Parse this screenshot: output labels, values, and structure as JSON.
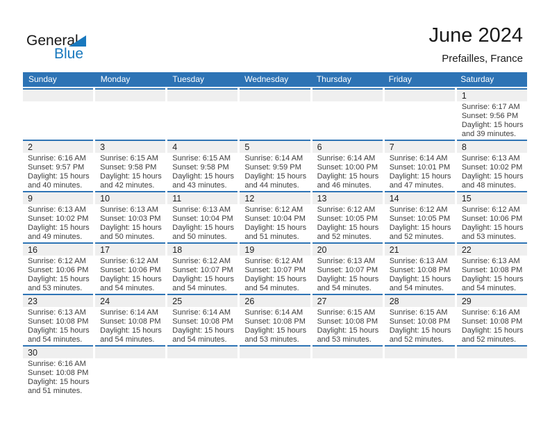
{
  "logo": {
    "general": "General",
    "blue": "Blue"
  },
  "header": {
    "title": "June 2024",
    "subtitle": "Prefailles, France"
  },
  "colors": {
    "header_bar_blue": "#2d73b5",
    "week_line_blue": "#2e74b5",
    "logo_blue": "#1878be",
    "day_band_gray": "#efefef",
    "detail_text": "#3d3d3d"
  },
  "day_headers": [
    "Sunday",
    "Monday",
    "Tuesday",
    "Wednesday",
    "Thursday",
    "Friday",
    "Saturday"
  ],
  "weeks": [
    [
      null,
      null,
      null,
      null,
      null,
      null,
      {
        "day": "1",
        "sunrise": "Sunrise: 6:17 AM",
        "sunset": "Sunset: 9:56 PM",
        "daylight_line1": "Daylight: 15 hours",
        "daylight_line2": "and 39 minutes."
      }
    ],
    [
      {
        "day": "2",
        "sunrise": "Sunrise: 6:16 AM",
        "sunset": "Sunset: 9:57 PM",
        "daylight_line1": "Daylight: 15 hours",
        "daylight_line2": "and 40 minutes."
      },
      {
        "day": "3",
        "sunrise": "Sunrise: 6:15 AM",
        "sunset": "Sunset: 9:58 PM",
        "daylight_line1": "Daylight: 15 hours",
        "daylight_line2": "and 42 minutes."
      },
      {
        "day": "4",
        "sunrise": "Sunrise: 6:15 AM",
        "sunset": "Sunset: 9:58 PM",
        "daylight_line1": "Daylight: 15 hours",
        "daylight_line2": "and 43 minutes."
      },
      {
        "day": "5",
        "sunrise": "Sunrise: 6:14 AM",
        "sunset": "Sunset: 9:59 PM",
        "daylight_line1": "Daylight: 15 hours",
        "daylight_line2": "and 44 minutes."
      },
      {
        "day": "6",
        "sunrise": "Sunrise: 6:14 AM",
        "sunset": "Sunset: 10:00 PM",
        "daylight_line1": "Daylight: 15 hours",
        "daylight_line2": "and 46 minutes."
      },
      {
        "day": "7",
        "sunrise": "Sunrise: 6:14 AM",
        "sunset": "Sunset: 10:01 PM",
        "daylight_line1": "Daylight: 15 hours",
        "daylight_line2": "and 47 minutes."
      },
      {
        "day": "8",
        "sunrise": "Sunrise: 6:13 AM",
        "sunset": "Sunset: 10:02 PM",
        "daylight_line1": "Daylight: 15 hours",
        "daylight_line2": "and 48 minutes."
      }
    ],
    [
      {
        "day": "9",
        "sunrise": "Sunrise: 6:13 AM",
        "sunset": "Sunset: 10:02 PM",
        "daylight_line1": "Daylight: 15 hours",
        "daylight_line2": "and 49 minutes."
      },
      {
        "day": "10",
        "sunrise": "Sunrise: 6:13 AM",
        "sunset": "Sunset: 10:03 PM",
        "daylight_line1": "Daylight: 15 hours",
        "daylight_line2": "and 50 minutes."
      },
      {
        "day": "11",
        "sunrise": "Sunrise: 6:13 AM",
        "sunset": "Sunset: 10:04 PM",
        "daylight_line1": "Daylight: 15 hours",
        "daylight_line2": "and 50 minutes."
      },
      {
        "day": "12",
        "sunrise": "Sunrise: 6:12 AM",
        "sunset": "Sunset: 10:04 PM",
        "daylight_line1": "Daylight: 15 hours",
        "daylight_line2": "and 51 minutes."
      },
      {
        "day": "13",
        "sunrise": "Sunrise: 6:12 AM",
        "sunset": "Sunset: 10:05 PM",
        "daylight_line1": "Daylight: 15 hours",
        "daylight_line2": "and 52 minutes."
      },
      {
        "day": "14",
        "sunrise": "Sunrise: 6:12 AM",
        "sunset": "Sunset: 10:05 PM",
        "daylight_line1": "Daylight: 15 hours",
        "daylight_line2": "and 52 minutes."
      },
      {
        "day": "15",
        "sunrise": "Sunrise: 6:12 AM",
        "sunset": "Sunset: 10:06 PM",
        "daylight_line1": "Daylight: 15 hours",
        "daylight_line2": "and 53 minutes."
      }
    ],
    [
      {
        "day": "16",
        "sunrise": "Sunrise: 6:12 AM",
        "sunset": "Sunset: 10:06 PM",
        "daylight_line1": "Daylight: 15 hours",
        "daylight_line2": "and 53 minutes."
      },
      {
        "day": "17",
        "sunrise": "Sunrise: 6:12 AM",
        "sunset": "Sunset: 10:06 PM",
        "daylight_line1": "Daylight: 15 hours",
        "daylight_line2": "and 54 minutes."
      },
      {
        "day": "18",
        "sunrise": "Sunrise: 6:12 AM",
        "sunset": "Sunset: 10:07 PM",
        "daylight_line1": "Daylight: 15 hours",
        "daylight_line2": "and 54 minutes."
      },
      {
        "day": "19",
        "sunrise": "Sunrise: 6:12 AM",
        "sunset": "Sunset: 10:07 PM",
        "daylight_line1": "Daylight: 15 hours",
        "daylight_line2": "and 54 minutes."
      },
      {
        "day": "20",
        "sunrise": "Sunrise: 6:13 AM",
        "sunset": "Sunset: 10:07 PM",
        "daylight_line1": "Daylight: 15 hours",
        "daylight_line2": "and 54 minutes."
      },
      {
        "day": "21",
        "sunrise": "Sunrise: 6:13 AM",
        "sunset": "Sunset: 10:08 PM",
        "daylight_line1": "Daylight: 15 hours",
        "daylight_line2": "and 54 minutes."
      },
      {
        "day": "22",
        "sunrise": "Sunrise: 6:13 AM",
        "sunset": "Sunset: 10:08 PM",
        "daylight_line1": "Daylight: 15 hours",
        "daylight_line2": "and 54 minutes."
      }
    ],
    [
      {
        "day": "23",
        "sunrise": "Sunrise: 6:13 AM",
        "sunset": "Sunset: 10:08 PM",
        "daylight_line1": "Daylight: 15 hours",
        "daylight_line2": "and 54 minutes."
      },
      {
        "day": "24",
        "sunrise": "Sunrise: 6:14 AM",
        "sunset": "Sunset: 10:08 PM",
        "daylight_line1": "Daylight: 15 hours",
        "daylight_line2": "and 54 minutes."
      },
      {
        "day": "25",
        "sunrise": "Sunrise: 6:14 AM",
        "sunset": "Sunset: 10:08 PM",
        "daylight_line1": "Daylight: 15 hours",
        "daylight_line2": "and 54 minutes."
      },
      {
        "day": "26",
        "sunrise": "Sunrise: 6:14 AM",
        "sunset": "Sunset: 10:08 PM",
        "daylight_line1": "Daylight: 15 hours",
        "daylight_line2": "and 53 minutes."
      },
      {
        "day": "27",
        "sunrise": "Sunrise: 6:15 AM",
        "sunset": "Sunset: 10:08 PM",
        "daylight_line1": "Daylight: 15 hours",
        "daylight_line2": "and 53 minutes."
      },
      {
        "day": "28",
        "sunrise": "Sunrise: 6:15 AM",
        "sunset": "Sunset: 10:08 PM",
        "daylight_line1": "Daylight: 15 hours",
        "daylight_line2": "and 52 minutes."
      },
      {
        "day": "29",
        "sunrise": "Sunrise: 6:16 AM",
        "sunset": "Sunset: 10:08 PM",
        "daylight_line1": "Daylight: 15 hours",
        "daylight_line2": "and 52 minutes."
      }
    ],
    [
      {
        "day": "30",
        "sunrise": "Sunrise: 6:16 AM",
        "sunset": "Sunset: 10:08 PM",
        "daylight_line1": "Daylight: 15 hours",
        "daylight_line2": "and 51 minutes."
      },
      null,
      null,
      null,
      null,
      null,
      null
    ]
  ]
}
